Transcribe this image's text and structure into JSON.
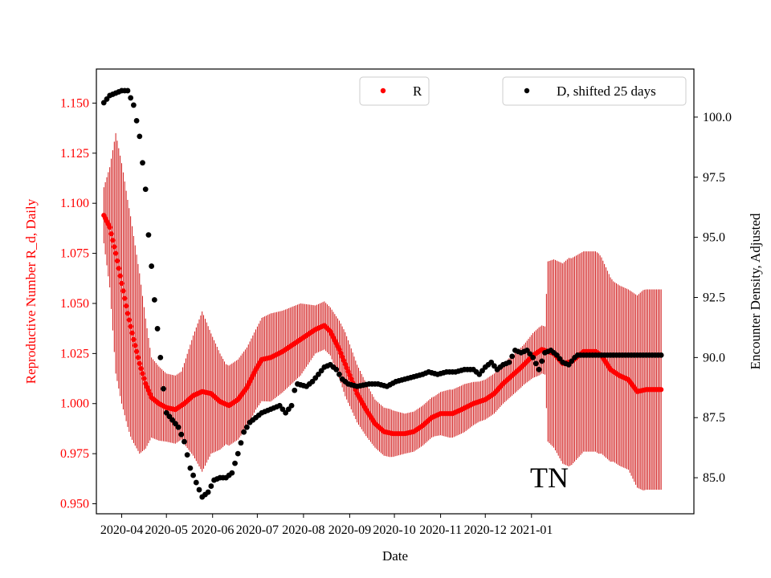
{
  "chart_data": {
    "type": "scatter",
    "xlabel": "Date",
    "ylabel_left": "Reproductive Number R_d, Daily",
    "ylabel_right": "Encounter Density, Adjusted",
    "x_ticks": [
      "2020-04",
      "2020-05",
      "2020-06",
      "2020-07",
      "2020-08",
      "2020-09",
      "2020-10",
      "2020-11",
      "2020-12",
      "2021-01"
    ],
    "x_range_days": [
      -17,
      384
    ],
    "ylim_left": [
      0.945,
      1.167
    ],
    "ylim_right": [
      83.5,
      102.0
    ],
    "yticks_left": [
      "0.950",
      "0.975",
      "1.000",
      "1.025",
      "1.050",
      "1.075",
      "1.100",
      "1.125",
      "1.150"
    ],
    "yticks_right": [
      "85.0",
      "87.5",
      "90.0",
      "92.5",
      "95.0",
      "97.5",
      "100.0"
    ],
    "left_axis_color": "#ff0000",
    "annotation": "TN",
    "legend": {
      "r_series": "R",
      "d_series": "D, shifted 25 days",
      "r_color": "#ff0000",
      "d_color": "#000000"
    },
    "r_knots": [
      [
        -12,
        1.094
      ],
      [
        -8,
        1.088
      ],
      [
        -4,
        1.075
      ],
      [
        0,
        1.06
      ],
      [
        4,
        1.045
      ],
      [
        8,
        1.032
      ],
      [
        12,
        1.02
      ],
      [
        16,
        1.01
      ],
      [
        20,
        1.003
      ],
      [
        25,
        1.0
      ],
      [
        30,
        0.998
      ],
      [
        36,
        0.997
      ],
      [
        42,
        1.0
      ],
      [
        48,
        1.004
      ],
      [
        54,
        1.006
      ],
      [
        60,
        1.005
      ],
      [
        66,
        1.001
      ],
      [
        72,
        0.999
      ],
      [
        78,
        1.002
      ],
      [
        84,
        1.008
      ],
      [
        90,
        1.017
      ],
      [
        94,
        1.022
      ],
      [
        100,
        1.023
      ],
      [
        108,
        1.026
      ],
      [
        116,
        1.03
      ],
      [
        124,
        1.034
      ],
      [
        130,
        1.037
      ],
      [
        136,
        1.039
      ],
      [
        140,
        1.036
      ],
      [
        146,
        1.027
      ],
      [
        152,
        1.016
      ],
      [
        158,
        1.005
      ],
      [
        164,
        0.997
      ],
      [
        170,
        0.99
      ],
      [
        176,
        0.986
      ],
      [
        182,
        0.985
      ],
      [
        190,
        0.985
      ],
      [
        196,
        0.986
      ],
      [
        202,
        0.989
      ],
      [
        208,
        0.993
      ],
      [
        214,
        0.995
      ],
      [
        222,
        0.995
      ],
      [
        228,
        0.997
      ],
      [
        236,
        1.0
      ],
      [
        244,
        1.002
      ],
      [
        250,
        1.005
      ],
      [
        256,
        1.01
      ],
      [
        262,
        1.014
      ],
      [
        268,
        1.018
      ],
      [
        276,
        1.024
      ],
      [
        282,
        1.027
      ],
      [
        290,
        1.025
      ],
      [
        296,
        1.02
      ],
      [
        302,
        1.021
      ],
      [
        310,
        1.026
      ],
      [
        318,
        1.026
      ],
      [
        322,
        1.024
      ],
      [
        328,
        1.017
      ],
      [
        334,
        1.014
      ],
      [
        340,
        1.012
      ],
      [
        346,
        1.006
      ],
      [
        352,
        1.007
      ],
      [
        358,
        1.007
      ],
      [
        362,
        1.007
      ]
    ],
    "r_err_knots": [
      [
        -12,
        0.014
      ],
      [
        -8,
        0.03
      ],
      [
        -4,
        0.06
      ],
      [
        0,
        0.06
      ],
      [
        6,
        0.055
      ],
      [
        12,
        0.045
      ],
      [
        20,
        0.02
      ],
      [
        30,
        0.017
      ],
      [
        40,
        0.017
      ],
      [
        48,
        0.03
      ],
      [
        54,
        0.04
      ],
      [
        60,
        0.03
      ],
      [
        70,
        0.02
      ],
      [
        80,
        0.02
      ],
      [
        90,
        0.02
      ],
      [
        100,
        0.022
      ],
      [
        110,
        0.02
      ],
      [
        120,
        0.018
      ],
      [
        130,
        0.012
      ],
      [
        140,
        0.012
      ],
      [
        150,
        0.016
      ],
      [
        160,
        0.014
      ],
      [
        170,
        0.012
      ],
      [
        180,
        0.012
      ],
      [
        190,
        0.01
      ],
      [
        200,
        0.01
      ],
      [
        210,
        0.01
      ],
      [
        220,
        0.012
      ],
      [
        230,
        0.012
      ],
      [
        240,
        0.01
      ],
      [
        250,
        0.01
      ],
      [
        260,
        0.01
      ],
      [
        270,
        0.01
      ],
      [
        280,
        0.012
      ],
      [
        284,
        0.012
      ],
      [
        286,
        0.045
      ],
      [
        300,
        0.052
      ],
      [
        310,
        0.05
      ],
      [
        320,
        0.05
      ],
      [
        330,
        0.045
      ],
      [
        340,
        0.045
      ],
      [
        350,
        0.05
      ],
      [
        362,
        0.05
      ]
    ],
    "d_knots": [
      [
        -12,
        100.6
      ],
      [
        -8,
        100.9
      ],
      [
        -4,
        101.0
      ],
      [
        0,
        101.1
      ],
      [
        4,
        101.1
      ],
      [
        8,
        100.5
      ],
      [
        12,
        99.2
      ],
      [
        16,
        97.0
      ],
      [
        18,
        95.1
      ],
      [
        20,
        93.8
      ],
      [
        22,
        92.4
      ],
      [
        24,
        91.2
      ],
      [
        26,
        90.0
      ],
      [
        28,
        88.7
      ],
      [
        30,
        87.7
      ],
      [
        34,
        87.4
      ],
      [
        38,
        87.1
      ],
      [
        42,
        86.5
      ],
      [
        46,
        85.4
      ],
      [
        50,
        84.8
      ],
      [
        54,
        84.2
      ],
      [
        58,
        84.4
      ],
      [
        62,
        84.9
      ],
      [
        66,
        85.0
      ],
      [
        70,
        85.0
      ],
      [
        74,
        85.2
      ],
      [
        78,
        86.0
      ],
      [
        82,
        86.9
      ],
      [
        86,
        87.3
      ],
      [
        90,
        87.5
      ],
      [
        94,
        87.7
      ],
      [
        98,
        87.8
      ],
      [
        102,
        87.9
      ],
      [
        106,
        88.0
      ],
      [
        110,
        87.7
      ],
      [
        114,
        88.0
      ],
      [
        115,
        88.5
      ],
      [
        118,
        88.9
      ],
      [
        124,
        88.8
      ],
      [
        128,
        89.0
      ],
      [
        132,
        89.3
      ],
      [
        136,
        89.6
      ],
      [
        140,
        89.7
      ],
      [
        144,
        89.5
      ],
      [
        148,
        89.1
      ],
      [
        152,
        88.9
      ],
      [
        158,
        88.8
      ],
      [
        166,
        88.9
      ],
      [
        172,
        88.9
      ],
      [
        178,
        88.8
      ],
      [
        184,
        89.0
      ],
      [
        190,
        89.1
      ],
      [
        196,
        89.2
      ],
      [
        202,
        89.3
      ],
      [
        206,
        89.4
      ],
      [
        212,
        89.3
      ],
      [
        218,
        89.4
      ],
      [
        224,
        89.4
      ],
      [
        230,
        89.5
      ],
      [
        236,
        89.5
      ],
      [
        240,
        89.3
      ],
      [
        244,
        89.6
      ],
      [
        248,
        89.8
      ],
      [
        252,
        89.5
      ],
      [
        256,
        89.7
      ],
      [
        260,
        89.8
      ],
      [
        264,
        90.3
      ],
      [
        268,
        90.2
      ],
      [
        272,
        90.3
      ],
      [
        276,
        90.0
      ],
      [
        280,
        89.5
      ],
      [
        284,
        90.2
      ],
      [
        288,
        90.3
      ],
      [
        292,
        90.1
      ],
      [
        296,
        89.8
      ],
      [
        300,
        89.7
      ],
      [
        304,
        90.0
      ],
      [
        306,
        90.1
      ],
      [
        362,
        90.1
      ]
    ]
  }
}
